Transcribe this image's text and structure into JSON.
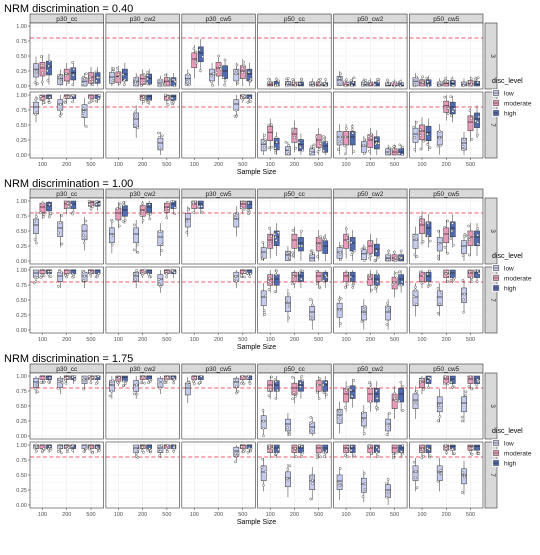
{
  "chart_data": [
    {
      "type": "boxplot",
      "title": "NRM discrimination = 0.40",
      "xlabel": "Sample Size",
      "categories": [
        "100",
        "200",
        "500"
      ],
      "ylim": [
        0,
        1
      ],
      "yticks": [
        "0.00",
        "0.25",
        "0.50",
        "0.75",
        "1.00"
      ],
      "reference_line": 0.8,
      "facet_columns": [
        "p30_cc",
        "p30_cw2",
        "p30_cw5",
        "p50_cc",
        "p50_cw2",
        "p50_cw5"
      ],
      "facet_rows": [
        "3",
        "7"
      ],
      "legend": {
        "title": "disc_level",
        "entries": [
          "low",
          "moderate",
          "high"
        ]
      },
      "series": [
        {
          "name": "low",
          "panels": {
            "3": [
              [
                0.28,
                0.15,
                0.12,
                null,
                0.1,
                0.08
              ],
              [
                0.12,
                0.08,
                0.2,
                0.03,
                0.02,
                0.02
              ],
              [
                0.08,
                0.05,
                0.2,
                0.02,
                0.01,
                0.02
              ]
            ],
            "7": [
              [
                0.8,
                null,
                null,
                0.18,
                0.3,
                0.35
              ],
              [
                0.85,
                0.6,
                null,
                0.08,
                0.15,
                0.3
              ],
              [
                0.75,
                0.2,
                0.85,
                0.05,
                0.05,
                0.2
              ]
            ]
          }
        },
        {
          "name": "moderate",
          "panels": {
            "3": [
              [
                0.3,
                0.16,
                0.45,
                0.02,
                0.02,
                0.05
              ],
              [
                0.2,
                0.12,
                0.3,
                0.02,
                0.02,
                0.04
              ],
              [
                0.15,
                0.08,
                0.25,
                0.02,
                0.01,
                0.04
              ]
            ],
            "7": [
              [
                0.98,
                null,
                null,
                0.38,
                0.3,
                0.4
              ],
              [
                1.0,
                0.98,
                null,
                0.35,
                0.25,
                0.82
              ],
              [
                1.0,
                0.98,
                1.0,
                0.25,
                0.05,
                0.55
              ]
            ]
          }
        },
        {
          "name": "high",
          "panels": {
            "3": [
              [
                0.32,
                0.2,
                0.55,
                0.03,
                0.03,
                0.05
              ],
              [
                0.22,
                0.13,
                0.25,
                0.02,
                0.02,
                0.04
              ],
              [
                0.15,
                0.08,
                0.2,
                0.01,
                0.01,
                0.03
              ]
            ],
            "7": [
              [
                1.0,
                null,
                null,
                0.2,
                0.3,
                0.38
              ],
              [
                1.0,
                0.98,
                null,
                0.18,
                0.22,
                0.8
              ],
              [
                1.0,
                0.98,
                1.0,
                0.15,
                0.05,
                0.6
              ]
            ]
          }
        }
      ]
    },
    {
      "type": "boxplot",
      "title": "NRM discrimination = 1.00",
      "xlabel": "Sample Size",
      "categories": [
        "100",
        "200",
        "500"
      ],
      "ylim": [
        0,
        1
      ],
      "yticks": [
        "0.00",
        "0.25",
        "0.50",
        "0.75",
        "1.00"
      ],
      "reference_line": 0.8,
      "facet_columns": [
        "p30_cc",
        "p30_cw2",
        "p30_cw5",
        "p50_cc",
        "p50_cw2",
        "p50_cw5"
      ],
      "facet_rows": [
        "3",
        "7"
      ],
      "legend": {
        "title": "disc_level",
        "entries": [
          "low",
          "moderate",
          "high"
        ]
      },
      "series": [
        {
          "name": "low",
          "panels": {
            "3": [
              [
                0.6,
                0.45,
                0.7,
                0.15,
                0.15,
                0.35
              ],
              [
                0.55,
                0.45,
                null,
                0.1,
                0.12,
                0.3
              ],
              [
                0.5,
                0.4,
                0.7,
                0.05,
                0.05,
                0.25
              ]
            ],
            "7": [
              [
                0.95,
                null,
                null,
                0.55,
                0.35,
                0.55
              ],
              [
                0.9,
                0.9,
                null,
                0.45,
                0.3,
                0.55
              ],
              [
                0.9,
                0.85,
                0.9,
                0.3,
                0.3,
                0.6
              ]
            ]
          }
        },
        {
          "name": "moderate",
          "panels": {
            "3": [
              [
                0.9,
                0.8,
                0.95,
                0.35,
                0.35,
                0.6
              ],
              [
                0.95,
                0.85,
                null,
                0.35,
                0.25,
                0.45
              ],
              [
                0.98,
                0.9,
                0.95,
                0.3,
                0.05,
                0.4
              ]
            ],
            "7": [
              [
                1.0,
                null,
                null,
                0.85,
                0.9,
                0.9
              ],
              [
                1.0,
                1.0,
                null,
                0.9,
                0.85,
                0.95
              ],
              [
                1.0,
                1.0,
                1.0,
                0.9,
                0.8,
                0.95
              ]
            ]
          }
        },
        {
          "name": "high",
          "panels": {
            "3": [
              [
                0.92,
                0.85,
                0.95,
                0.4,
                0.3,
                0.55
              ],
              [
                0.95,
                0.9,
                null,
                0.3,
                0.2,
                0.55
              ],
              [
                0.98,
                0.95,
                0.95,
                0.25,
                0.05,
                0.4
              ]
            ],
            "7": [
              [
                1.0,
                null,
                null,
                0.85,
                0.9,
                0.9
              ],
              [
                1.0,
                1.0,
                null,
                0.9,
                0.85,
                0.95
              ],
              [
                1.0,
                1.0,
                1.0,
                0.9,
                0.85,
                0.95
              ]
            ]
          }
        }
      ]
    },
    {
      "type": "boxplot",
      "title": "NRM discrimination = 1.75",
      "xlabel": "Sample Size",
      "categories": [
        "100",
        "200",
        "500"
      ],
      "ylim": [
        0,
        1
      ],
      "yticks": [
        "0.00",
        "0.25",
        "0.50",
        "0.75",
        "1.00"
      ],
      "reference_line": 0.8,
      "facet_columns": [
        "p30_cc",
        "p30_cw2",
        "p30_cw5",
        "p50_cc",
        "p50_cw2",
        "p50_cw5"
      ],
      "facet_rows": [
        "3",
        "7"
      ],
      "legend": {
        "title": "disc_level",
        "entries": [
          "low",
          "moderate",
          "high"
        ]
      },
      "series": [
        {
          "name": "low",
          "panels": {
            "3": [
              [
                0.9,
                0.85,
                0.8,
                0.25,
                0.35,
                0.6
              ],
              [
                0.9,
                0.85,
                null,
                0.2,
                0.3,
                0.55
              ],
              [
                0.95,
                0.9,
                0.9,
                0.15,
                0.2,
                0.55
              ]
            ],
            "7": [
              [
                1.0,
                null,
                null,
                0.55,
                0.4,
                0.55
              ],
              [
                1.0,
                0.95,
                null,
                0.45,
                0.35,
                0.55
              ],
              [
                1.0,
                0.95,
                0.9,
                0.4,
                0.25,
                0.5
              ]
            ]
          }
        },
        {
          "name": "moderate",
          "panels": {
            "3": [
              [
                1.0,
                0.98,
                1.0,
                0.85,
                0.7,
                0.9
              ],
              [
                1.0,
                1.0,
                null,
                0.8,
                0.7,
                0.95
              ],
              [
                1.0,
                1.0,
                1.0,
                0.85,
                0.6,
                0.95
              ]
            ],
            "7": [
              [
                1.0,
                null,
                null,
                0.95,
                0.95,
                0.95
              ],
              [
                1.0,
                1.0,
                null,
                0.95,
                0.95,
                0.98
              ],
              [
                1.0,
                1.0,
                1.0,
                0.95,
                0.95,
                0.98
              ]
            ]
          }
        },
        {
          "name": "high",
          "panels": {
            "3": [
              [
                1.0,
                0.98,
                1.0,
                0.85,
                0.75,
                0.95
              ],
              [
                1.0,
                1.0,
                null,
                0.85,
                0.7,
                0.95
              ],
              [
                1.0,
                1.0,
                1.0,
                0.85,
                0.7,
                0.95
              ]
            ],
            "7": [
              [
                1.0,
                null,
                null,
                0.95,
                0.95,
                0.95
              ],
              [
                1.0,
                1.0,
                null,
                0.95,
                0.95,
                0.98
              ],
              [
                1.0,
                1.0,
                1.0,
                0.95,
                0.95,
                0.98
              ]
            ]
          }
        }
      ]
    }
  ],
  "colors": {
    "low": "#c5cbed",
    "moderate": "#e89aba",
    "high": "#4f6bb4",
    "reference_line": "#f05a6a",
    "strip": "#d9d9d9",
    "panel_border": "#333333",
    "grid": "#ebebeb"
  }
}
